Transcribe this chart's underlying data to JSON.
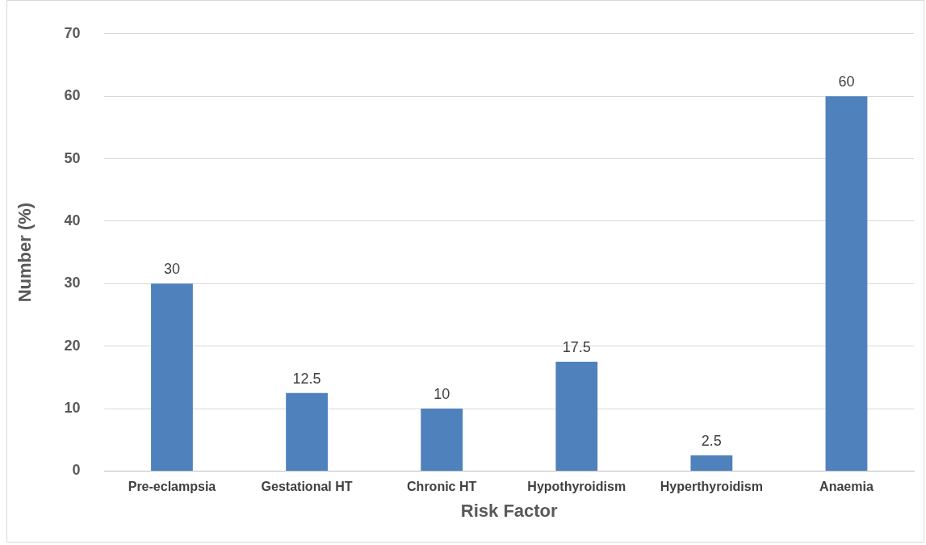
{
  "chart_data": {
    "type": "bar",
    "xlabel": "Risk Factor",
    "ylabel": "Number (%)",
    "categories": [
      "Pre-eclampsia",
      "Gestational HT",
      "Chronic HT",
      "Hypothyroidism",
      "Hyperthyroidism",
      "Anaemia"
    ],
    "values": [
      30,
      12.5,
      10,
      17.5,
      2.5,
      60
    ],
    "color": "#4f81bd",
    "ylim": [
      0,
      70
    ],
    "yticks": [
      0,
      10,
      20,
      30,
      40,
      50,
      60,
      70
    ],
    "grid": "y",
    "data_labels": true,
    "legend": false
  }
}
